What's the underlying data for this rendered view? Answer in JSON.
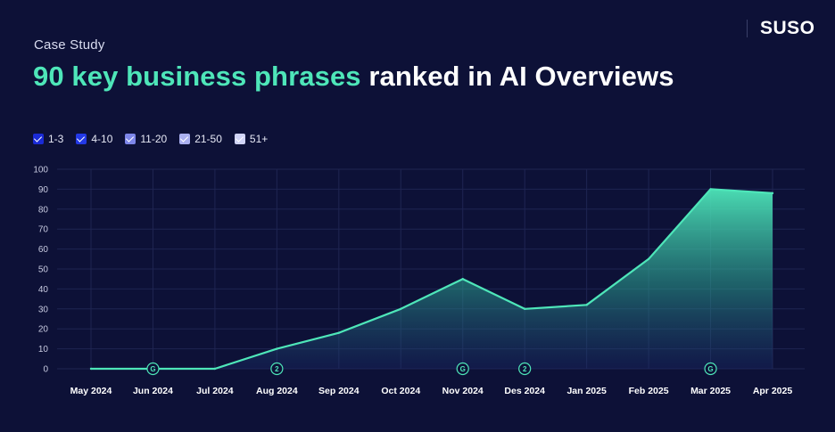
{
  "header": {
    "eyebrow": "Case Study",
    "headline_accent": "90 key business phrases",
    "headline_rest": " ranked in AI Overviews",
    "brand": "SUSO"
  },
  "colors": {
    "background": "#0d1137",
    "accent": "#4ee6b9",
    "grid": "#1f2552"
  },
  "legend": [
    {
      "label": "1-3",
      "color": "#1a2bd6"
    },
    {
      "label": "4-10",
      "color": "#2339e6"
    },
    {
      "label": "11-20",
      "color": "#7d86e8"
    },
    {
      "label": "21-50",
      "color": "#aab0f0"
    },
    {
      "label": "51+",
      "color": "#d0d4f7"
    }
  ],
  "chart_data": {
    "type": "area",
    "x": [
      "May 2024",
      "Jun 2024",
      "Jul 2024",
      "Aug 2024",
      "Sep 2024",
      "Oct 2024",
      "Nov 2024",
      "Des 2024",
      "Jan 2025",
      "Feb 2025",
      "Mar 2025",
      "Apr 2025"
    ],
    "series": [
      {
        "values": [
          0,
          0,
          0,
          10,
          18,
          30,
          45,
          30,
          32,
          55,
          90,
          88
        ]
      }
    ],
    "ylim": [
      0,
      100
    ],
    "yticks": [
      0,
      10,
      20,
      30,
      40,
      50,
      60,
      70,
      80,
      90,
      100
    ],
    "grid": true,
    "legend_position": "top-left",
    "annotations": [
      {
        "x": "Jun 2024",
        "label": "G"
      },
      {
        "x": "Aug 2024",
        "label": "2"
      },
      {
        "x": "Nov 2024",
        "label": "G"
      },
      {
        "x": "Des 2024",
        "label": "2"
      },
      {
        "x": "Mar 2025",
        "label": "G"
      }
    ]
  }
}
